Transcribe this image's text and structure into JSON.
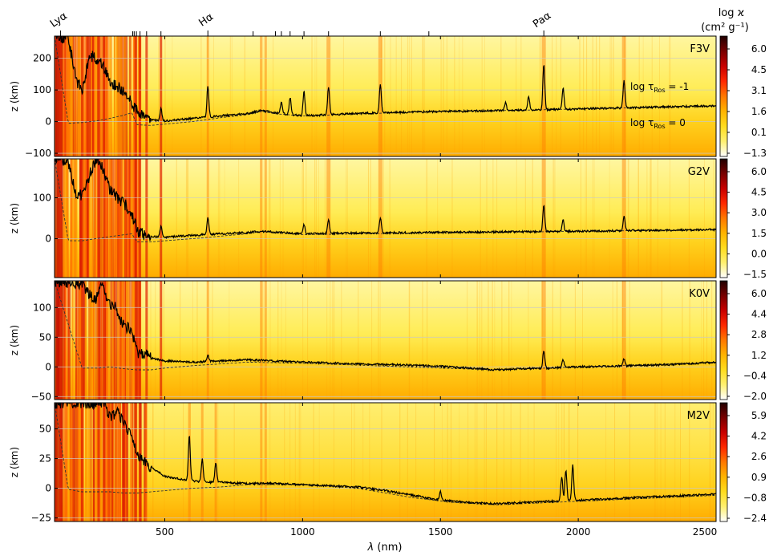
{
  "figure": {
    "xlabel_var": "λ",
    "xlabel_unit": " (nm)",
    "colorbar_title_line1": "log ϰ",
    "colorbar_title_line2": "(cm² g⁻¹)",
    "line_markers": [
      {
        "label": "Lyα",
        "x": 121.6
      },
      {
        "label": "Hα",
        "x": 656.3
      },
      {
        "label": "Paα",
        "x": 1875.1
      }
    ],
    "top_ticks": [
      383.5,
      388.9,
      397.0,
      410.2,
      434.0,
      486.1,
      820.4,
      901.5,
      923.0,
      954.6,
      1005.0,
      1094.1,
      1282.0,
      1458.0
    ],
    "tau_labels": {
      "upper_prefix": "log τ",
      "upper_sub": "Ros",
      "upper_suffix": " = -1",
      "lower_prefix": "log τ",
      "lower_sub": "Ros",
      "lower_suffix": " = 0"
    },
    "colors": {
      "tau_minus1_line": "#000000",
      "tau_0_line": "#333333",
      "colormap": [
        "#ffffff",
        "#fff070",
        "#ffdc1e",
        "#ffb400",
        "#ff7800",
        "#ff2800",
        "#c80000",
        "#780000",
        "#200000"
      ]
    }
  },
  "chart_data": {
    "type": "heatmap",
    "xlim": [
      100,
      2500
    ],
    "x_ticks": [
      500,
      1000,
      1500,
      2000,
      2500
    ],
    "x_tick_labels": [
      "500",
      "1000",
      "1500",
      "2000",
      "2500"
    ],
    "xlabel": "λ (nm)",
    "colorbar_label": "log ϰ (cm² g⁻¹)",
    "panels": [
      {
        "star": "F3V",
        "ylabel": "z (km)",
        "ylim": [
          -110,
          270
        ],
        "y_ticks": [
          -100,
          0,
          100,
          200
        ],
        "y_tick_labels": [
          "−100",
          "0",
          "100",
          "200"
        ],
        "colorbar_ticks": [
          "−1.3",
          "0.1",
          "1.6",
          "3.1",
          "4.5",
          "6.0"
        ],
        "tau_minus1": {
          "x": [
            100,
            150,
            180,
            200,
            230,
            250,
            270,
            300,
            330,
            360,
            380,
            400,
            430,
            450,
            500,
            600,
            700,
            800,
            850,
            900,
            1000,
            1100,
            1200,
            1300,
            1400,
            1500,
            1600,
            1700,
            1800,
            1900,
            2000,
            2100,
            2200,
            2300,
            2400,
            2500
          ],
          "y": [
            270,
            260,
            130,
            100,
            210,
            200,
            190,
            130,
            110,
            80,
            60,
            30,
            10,
            5,
            2,
            10,
            18,
            25,
            35,
            28,
            18,
            22,
            26,
            28,
            30,
            32,
            33,
            35,
            36,
            38,
            40,
            42,
            44,
            46,
            48,
            50
          ]
        },
        "tau_0": {
          "x": [
            100,
            150,
            200,
            250,
            300,
            350,
            380,
            400,
            450,
            500,
            600,
            700,
            800,
            850,
            900,
            1000,
            1200,
            1400,
            1600,
            1800,
            2000,
            2200,
            2500
          ],
          "y": [
            270,
            -5,
            -3,
            2,
            10,
            20,
            28,
            -10,
            -12,
            -8,
            0,
            12,
            22,
            32,
            25,
            18,
            24,
            30,
            33,
            36,
            40,
            44,
            50
          ]
        },
        "peaks": [
          {
            "x": 486.1,
            "y": 40
          },
          {
            "x": 656.3,
            "y": 110
          },
          {
            "x": 1005.0,
            "y": 95
          },
          {
            "x": 1094.1,
            "y": 110
          },
          {
            "x": 1282.0,
            "y": 118
          },
          {
            "x": 1875.1,
            "y": 180
          },
          {
            "x": 1820.0,
            "y": 80
          },
          {
            "x": 1945.0,
            "y": 105
          },
          {
            "x": 2166.0,
            "y": 130
          },
          {
            "x": 1736.0,
            "y": 60
          },
          {
            "x": 954.6,
            "y": 75
          },
          {
            "x": 923.0,
            "y": 60
          }
        ],
        "spectral_bands": [
          121.6,
          200,
          260,
          280,
          395,
          410,
          434,
          486.1,
          656.3,
          850,
          866,
          1094,
          1282,
          1875,
          2166
        ]
      },
      {
        "star": "G2V",
        "ylabel": "z (km)",
        "ylim": [
          -95,
          195
        ],
        "y_ticks": [
          0,
          100
        ],
        "y_tick_labels": [
          "0",
          "100"
        ],
        "colorbar_ticks": [
          "−1.5",
          "0.0",
          "1.5",
          "3.0",
          "4.5",
          "6.0"
        ],
        "tau_minus1": {
          "x": [
            100,
            150,
            180,
            200,
            230,
            250,
            270,
            300,
            330,
            360,
            380,
            400,
            430,
            450,
            500,
            600,
            700,
            800,
            850,
            900,
            1000,
            1200,
            1400,
            1600,
            1800,
            2000,
            2200,
            2500
          ],
          "y": [
            195,
            190,
            100,
            110,
            160,
            195,
            180,
            120,
            100,
            80,
            60,
            20,
            8,
            5,
            4,
            8,
            12,
            15,
            18,
            16,
            12,
            14,
            15,
            16,
            17,
            18,
            20,
            22
          ]
        },
        "tau_0": {
          "x": [
            100,
            150,
            200,
            300,
            380,
            400,
            450,
            500,
            600,
            800,
            850,
            900,
            1000,
            1500,
            2000,
            2500
          ],
          "y": [
            195,
            -5,
            -5,
            5,
            12,
            -8,
            -8,
            -5,
            0,
            12,
            18,
            14,
            10,
            14,
            18,
            22
          ]
        },
        "peaks": [
          {
            "x": 486.1,
            "y": 30
          },
          {
            "x": 656.3,
            "y": 50
          },
          {
            "x": 1005.0,
            "y": 35
          },
          {
            "x": 1094.1,
            "y": 45
          },
          {
            "x": 1282.0,
            "y": 50
          },
          {
            "x": 1875.1,
            "y": 80
          },
          {
            "x": 1945.0,
            "y": 45
          },
          {
            "x": 2166.0,
            "y": 55
          }
        ],
        "spectral_bands": [
          121.6,
          200,
          260,
          280,
          395,
          410,
          434,
          486.1,
          656.3,
          850,
          866,
          1094,
          1282,
          1875,
          2166
        ]
      },
      {
        "star": "K0V",
        "ylabel": "z (km)",
        "ylim": [
          -55,
          145
        ],
        "y_ticks": [
          -50,
          0,
          50,
          100
        ],
        "y_tick_labels": [
          "−50",
          "0",
          "50",
          "100"
        ],
        "colorbar_ticks": [
          "−2.0",
          "−0.4",
          "1.2",
          "2.8",
          "4.4",
          "6.0"
        ],
        "tau_minus1": {
          "x": [
            100,
            180,
            200,
            230,
            250,
            270,
            290,
            320,
            350,
            380,
            400,
            430,
            450,
            500,
            600,
            700,
            800,
            900,
            1000,
            1200,
            1400,
            1500,
            1600,
            1700,
            1800,
            1900,
            2000,
            2200,
            2400,
            2500
          ],
          "y": [
            145,
            140,
            140,
            120,
            110,
            145,
            110,
            100,
            70,
            60,
            25,
            22,
            15,
            10,
            8,
            10,
            12,
            10,
            8,
            5,
            3,
            1,
            -2,
            -5,
            -3,
            -2,
            0,
            2,
            5,
            8
          ]
        },
        "tau_0": {
          "x": [
            100,
            200,
            260,
            300,
            350,
            400,
            450,
            500,
            600,
            800,
            1000,
            1200,
            1500,
            1700,
            2000,
            2500
          ],
          "y": [
            145,
            -2,
            -2,
            0,
            -3,
            -5,
            -5,
            -2,
            2,
            8,
            6,
            3,
            -2,
            -5,
            0,
            8
          ]
        },
        "peaks": [
          {
            "x": 656.3,
            "y": 20
          },
          {
            "x": 1875.1,
            "y": 28
          },
          {
            "x": 1945.0,
            "y": 12
          },
          {
            "x": 2166.0,
            "y": 14
          }
        ],
        "spectral_bands": [
          121.6,
          200,
          260,
          280,
          395,
          410,
          434,
          486.1,
          656.3,
          850,
          866,
          1875,
          2166
        ]
      },
      {
        "star": "M2V",
        "ylabel": "z (km)",
        "ylim": [
          -28,
          72
        ],
        "y_ticks": [
          -25,
          0,
          25,
          50
        ],
        "y_tick_labels": [
          "−25",
          "0",
          "25",
          "50"
        ],
        "colorbar_ticks": [
          "−2.4",
          "−0.8",
          "0.9",
          "2.6",
          "4.2",
          "5.9"
        ],
        "tau_minus1": {
          "x": [
            100,
            250,
            280,
            300,
            330,
            350,
            380,
            400,
            420,
            450,
            500,
            550,
            600,
            650,
            700,
            800,
            900,
            1000,
            1100,
            1200,
            1300,
            1400,
            1500,
            1600,
            1700,
            1800,
            1900,
            2000,
            2100,
            2200,
            2300,
            2400,
            2500
          ],
          "y": [
            72,
            72,
            70,
            60,
            65,
            55,
            45,
            30,
            25,
            18,
            10,
            8,
            6,
            5,
            5,
            4,
            4,
            3,
            2,
            1,
            -2,
            -6,
            -10,
            -12,
            -13,
            -12,
            -11,
            -10,
            -9,
            -8,
            -7,
            -6,
            -5
          ]
        },
        "tau_0": {
          "x": [
            100,
            150,
            200,
            250,
            300,
            350,
            400,
            500,
            600,
            700,
            800,
            1000,
            1200,
            1400,
            1550,
            1700,
            1800,
            2000,
            2500
          ],
          "y": [
            72,
            -1,
            -3,
            -3,
            -3,
            -4,
            -4,
            -2,
            0,
            1,
            3,
            3,
            0,
            -8,
            -12,
            -14,
            -13,
            -11,
            -6
          ]
        },
        "peaks": [
          {
            "x": 589.0,
            "y": 45
          },
          {
            "x": 636.0,
            "y": 25
          },
          {
            "x": 685.0,
            "y": 22
          },
          {
            "x": 1500.0,
            "y": -3
          },
          {
            "x": 1940.0,
            "y": 10
          },
          {
            "x": 1955.0,
            "y": 15
          },
          {
            "x": 1980.0,
            "y": 20
          }
        ],
        "spectral_bands": [
          121.6,
          200,
          260,
          280,
          395,
          410,
          589,
          636,
          685,
          850,
          866
        ]
      }
    ]
  }
}
